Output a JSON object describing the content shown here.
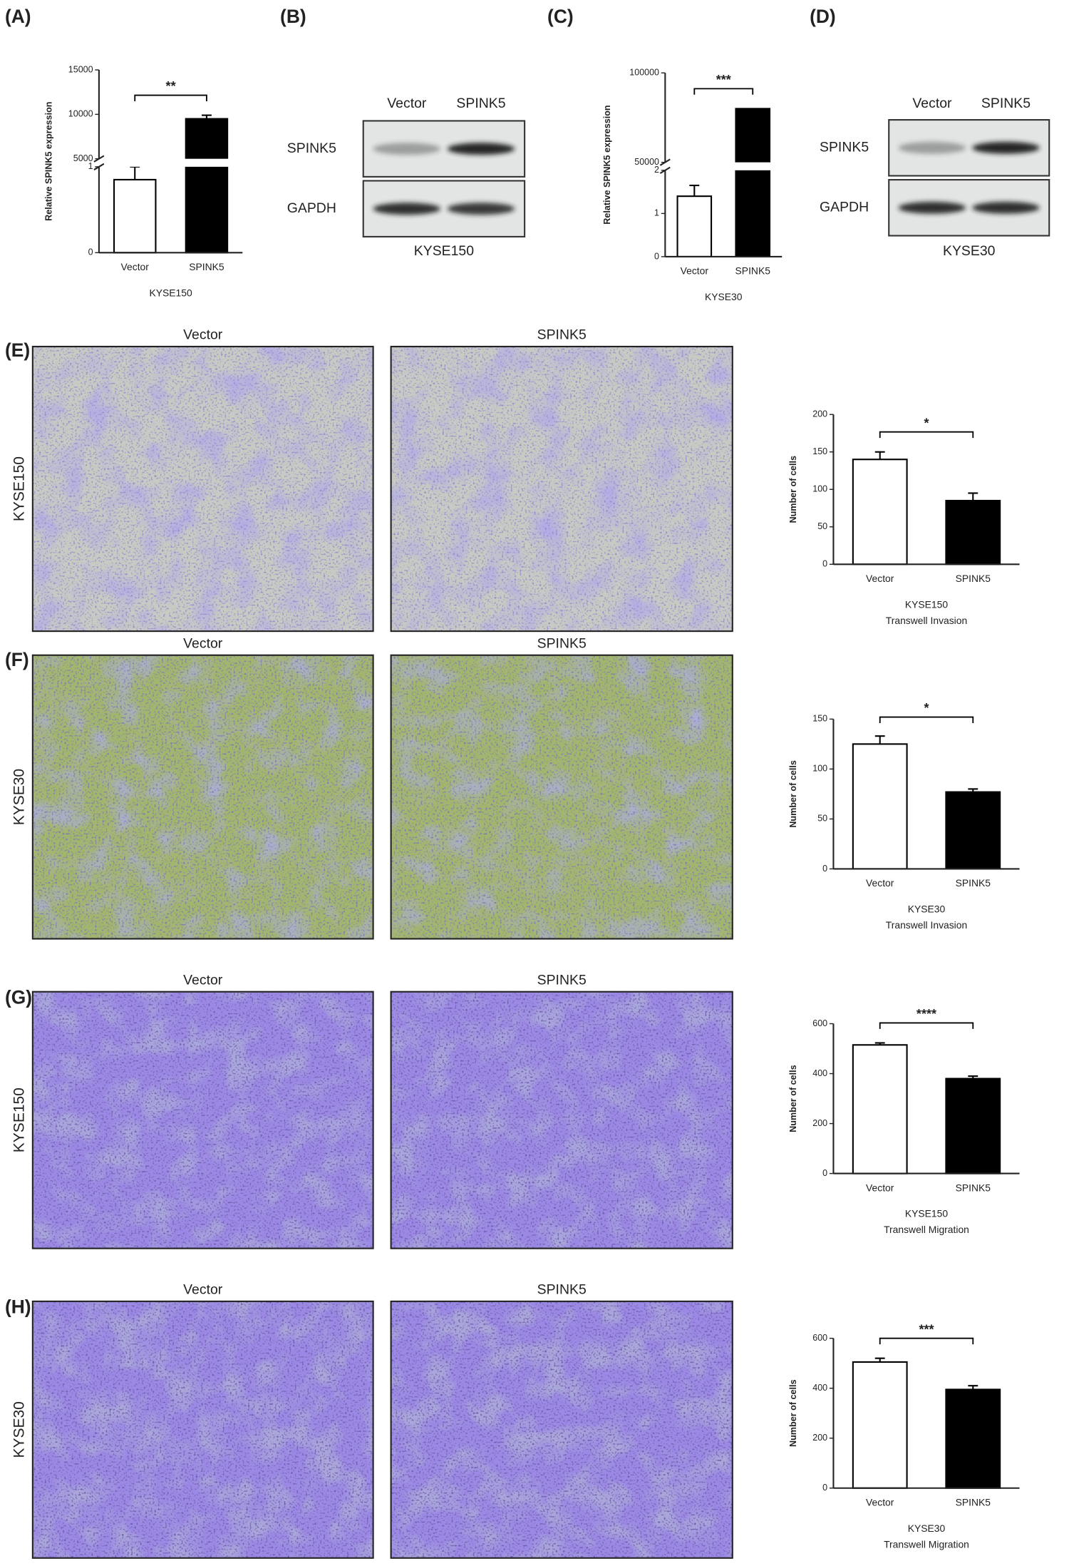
{
  "panel_labels": [
    "(A)",
    "(B)",
    "(C)",
    "(D)",
    "(E)",
    "(F)",
    "(G)",
    "(H)"
  ],
  "blots": [
    {
      "column_labels": [
        "Vector",
        "SPINK5"
      ],
      "row_labels": [
        "SPINK5",
        "GAPDH"
      ],
      "cell_line": "KYSE150"
    },
    {
      "column_labels": [
        "Vector",
        "SPINK5"
      ],
      "row_labels": [
        "SPINK5",
        "GAPDH"
      ],
      "cell_line": "KYSE30"
    }
  ],
  "images": [
    {
      "column_labels": [
        "Vector",
        "SPINK5"
      ],
      "row_label": "KYSE150"
    },
    {
      "column_labels": [
        "Vector",
        "SPINK5"
      ],
      "row_label": "KYSE30"
    },
    {
      "column_labels": [
        "Vector",
        "SPINK5"
      ],
      "row_label": "KYSE150"
    },
    {
      "column_labels": [
        "Vector",
        "SPINK5"
      ],
      "row_label": "KYSE30"
    }
  ],
  "chart_data": [
    {
      "type": "bar",
      "categories": [
        "Vector",
        "SPINK5"
      ],
      "values": [
        0.85,
        9500
      ],
      "errors": [
        0.15,
        400
      ],
      "colors": [
        "#ffffff",
        "#000000"
      ],
      "ylabel": "Relative SPINK5 expression",
      "xlabel": [
        "KYSE150"
      ],
      "significance": "**",
      "ylim": [
        0,
        15000
      ],
      "ybreak": [
        1,
        5000
      ],
      "yticks": [
        0,
        1,
        5000,
        10000,
        15000
      ]
    },
    {
      "type": "bar",
      "categories": [
        "Vector",
        "SPINK5"
      ],
      "values": [
        1.4,
        80000
      ],
      "errors": [
        0.25,
        null
      ],
      "colors": [
        "#ffffff",
        "#000000"
      ],
      "ylabel": "Relative SPINK5 expression",
      "xlabel": [
        "KYSE30"
      ],
      "significance": "***",
      "ylim": [
        0,
        100000
      ],
      "ybreak": [
        2,
        50000
      ],
      "yticks": [
        0,
        1,
        2,
        50000,
        100000
      ]
    },
    {
      "type": "bar",
      "categories": [
        "Vector",
        "SPINK5"
      ],
      "values": [
        140,
        85
      ],
      "errors": [
        10,
        10
      ],
      "colors": [
        "#ffffff",
        "#000000"
      ],
      "ylabel": "Number of cells",
      "xlabel": [
        "KYSE150",
        "Transwell Invasion"
      ],
      "significance": "*",
      "ylim": [
        0,
        200
      ],
      "yticks": [
        0,
        50,
        100,
        150,
        200
      ]
    },
    {
      "type": "bar",
      "categories": [
        "Vector",
        "SPINK5"
      ],
      "values": [
        125,
        77
      ],
      "errors": [
        8,
        3
      ],
      "colors": [
        "#ffffff",
        "#000000"
      ],
      "ylabel": "Number of cells",
      "xlabel": [
        "KYSE30",
        "Transwell Invasion"
      ],
      "significance": "*",
      "ylim": [
        0,
        150
      ],
      "yticks": [
        0,
        50,
        100,
        150
      ]
    },
    {
      "type": "bar",
      "categories": [
        "Vector",
        "SPINK5"
      ],
      "values": [
        515,
        380
      ],
      "errors": [
        8,
        10
      ],
      "colors": [
        "#ffffff",
        "#000000"
      ],
      "ylabel": "Number of cells",
      "xlabel": [
        "KYSE150",
        "Transwell Migration"
      ],
      "significance": "****",
      "ylim": [
        0,
        600
      ],
      "yticks": [
        0,
        200,
        400,
        600
      ]
    },
    {
      "type": "bar",
      "categories": [
        "Vector",
        "SPINK5"
      ],
      "values": [
        505,
        395
      ],
      "errors": [
        15,
        15
      ],
      "colors": [
        "#ffffff",
        "#000000"
      ],
      "ylabel": "Number of cells",
      "xlabel": [
        "KYSE30",
        "Transwell Migration"
      ],
      "significance": "***",
      "ylim": [
        0,
        600
      ],
      "yticks": [
        0,
        200,
        400,
        600
      ]
    }
  ]
}
